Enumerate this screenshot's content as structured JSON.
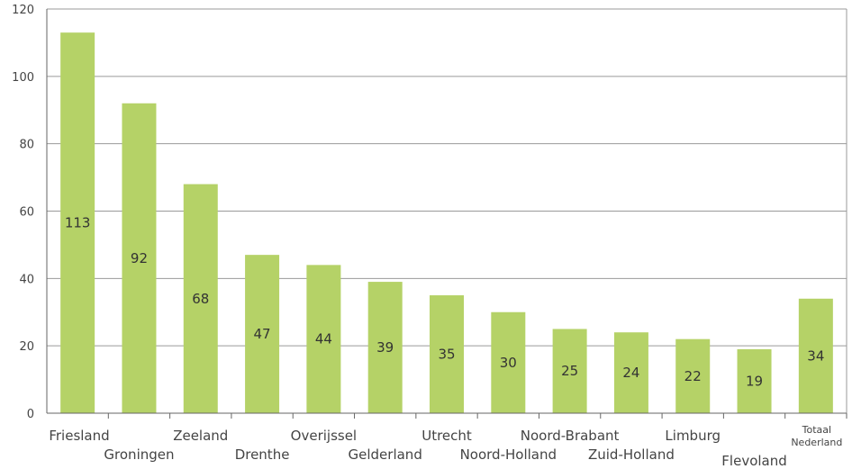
{
  "colors": {
    "bar": "#b5d267",
    "grid": "#9a9a9a",
    "axis": "#666666",
    "text": "#444444"
  },
  "chart_data": {
    "type": "bar",
    "title": "",
    "xlabel": "",
    "ylabel": "",
    "ylim": [
      0,
      120
    ],
    "yticks": [
      0,
      20,
      40,
      60,
      80,
      100,
      120
    ],
    "grid": true,
    "legend": "none",
    "categories": [
      "Friesland",
      "Groningen",
      "Zeeland",
      "Drenthe",
      "Overijssel",
      "Gelderland",
      "Utrecht",
      "Noord-Holland",
      "Noord-Brabant",
      "Zuid-Holland",
      "Limburg",
      "Flevoland",
      "Totaal Nederland"
    ],
    "values": [
      113,
      92,
      68,
      47,
      44,
      39,
      35,
      30,
      25,
      24,
      22,
      19,
      34
    ]
  }
}
